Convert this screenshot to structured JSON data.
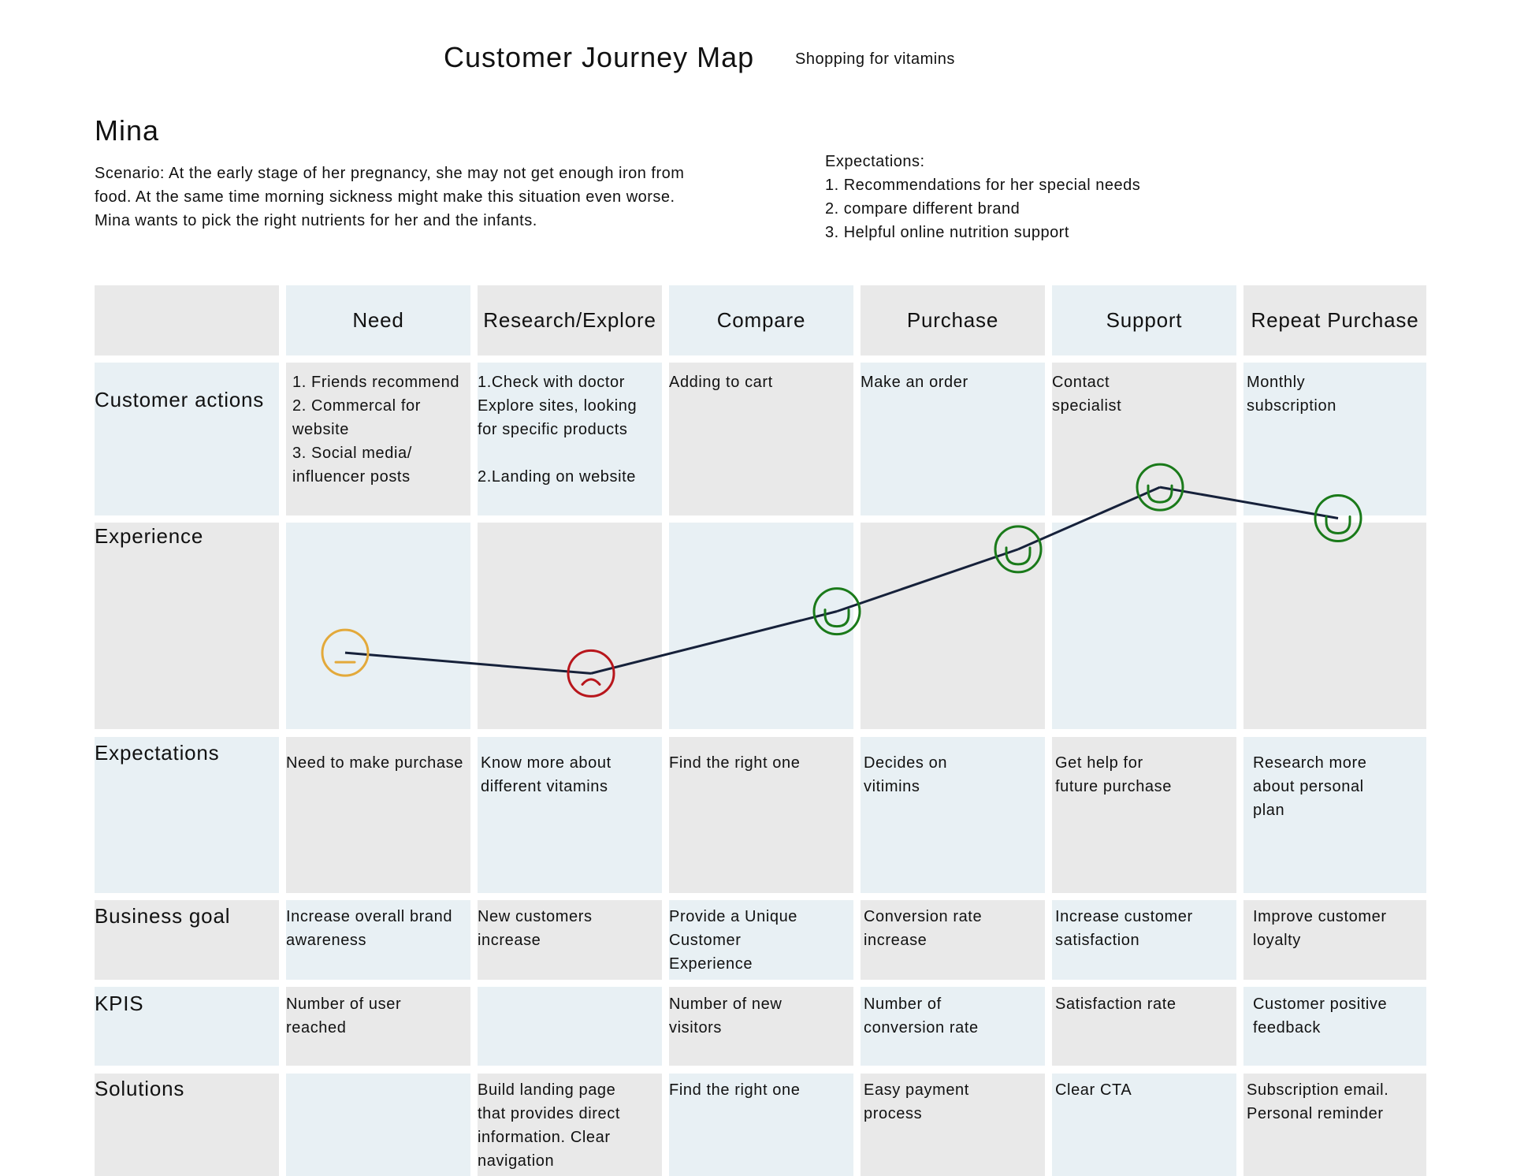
{
  "header": {
    "title": "Customer Journey Map",
    "subtitle": "Shopping for vitamins"
  },
  "persona": {
    "name": "Mina",
    "scenario": "Scenario: At the early stage of her pregnancy, she may not get enough iron from food. At the same time morning sickness might make this situation even worse. Mina wants to pick the right nutrients for her and the infants.",
    "expectations_title": "Expectations:",
    "expectations": [
      "1. Recommendations for her special needs",
      "2. compare different brand",
      "3. Helpful online nutrition support"
    ]
  },
  "stages": [
    "Need",
    "Research/Explore",
    "Compare",
    "Purchase",
    "Support",
    "Repeat Purchase"
  ],
  "rows": {
    "actions": {
      "label": "Customer actions",
      "cells": [
        "1. Friends recommend\n2. Commercal for\nwebsite\n3. Social media/\ninfluencer posts",
        "1.Check with doctor\nExplore sites, looking\nfor specific products\n\n2.Landing on website",
        "Adding to cart",
        "Make an order",
        "Contact\nspecialist",
        "Monthly\nsubscription"
      ]
    },
    "experience": {
      "label": "Experience"
    },
    "expectations": {
      "label": "Expectations",
      "cells": [
        "Need to make purchase",
        "Know more about\ndifferent vitamins",
        "Find the right one",
        "Decides on\nvitimins",
        "Get help for\nfuture purchase",
        "Research more\nabout personal\nplan"
      ]
    },
    "business_goal": {
      "label": "Business goal",
      "cells": [
        "Increase overall brand\nawareness",
        "New customers\nincrease",
        "Provide a Unique\nCustomer\nExperience",
        "Conversion rate\nincrease",
        "Increase customer\nsatisfaction",
        "Improve customer\nloyalty"
      ]
    },
    "kpis": {
      "label": "KPIS",
      "cells": [
        "Number of user\nreached",
        "",
        "Number of new\nvisitors",
        "Number of\nconversion rate",
        "Satisfaction rate",
        "Customer positive\nfeedback"
      ]
    },
    "solutions": {
      "label": "Solutions",
      "cells": [
        "",
        "Build landing page\nthat provides direct\ninformation. Clear\nnavigation",
        "Find the right one",
        "Easy payment\nprocess",
        "Clear CTA",
        "Subscription email.\nPersonal reminder"
      ]
    }
  },
  "emotion_colors": {
    "neutral": "#e3a93a",
    "unhappy": "#b8161c",
    "happy": "#1a7a1a",
    "line": "#16213a"
  },
  "chart_data": {
    "type": "line",
    "categories": [
      "Need",
      "Research/Explore",
      "Compare",
      "Purchase",
      "Support",
      "Repeat Purchase"
    ],
    "values": [
      1.5,
      1.3,
      1.9,
      2.5,
      3.1,
      2.8
    ],
    "emotions": [
      "neutral",
      "unhappy",
      "happy",
      "happy",
      "happy",
      "happy"
    ],
    "title": "",
    "ylim": [
      0,
      4
    ],
    "grid": false
  }
}
